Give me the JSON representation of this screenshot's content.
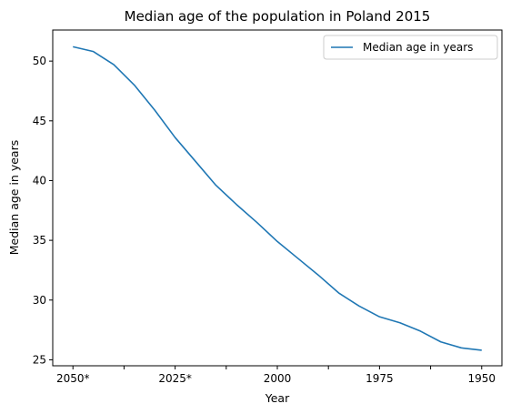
{
  "chart_data": {
    "type": "line",
    "title": "Median age of the population in Poland 2015",
    "xlabel": "Year",
    "ylabel": "Median age in years",
    "categories": [
      "2050*",
      "2045*",
      "2040*",
      "2035*",
      "2030*",
      "2025*",
      "2020*",
      "2015",
      "2010",
      "2005",
      "2000",
      "1995",
      "1990",
      "1985",
      "1980",
      "1975",
      "1970",
      "1965",
      "1960",
      "1955",
      "1950"
    ],
    "x_tick_labels": [
      {
        "index": 0,
        "label": "2050*"
      },
      {
        "index": 5,
        "label": "2025*"
      },
      {
        "index": 10,
        "label": "2000"
      },
      {
        "index": 15,
        "label": "1975"
      },
      {
        "index": 20,
        "label": "1950"
      }
    ],
    "x_minor_tick_indices": [
      2.5,
      7.5,
      12.5,
      17.5
    ],
    "y_ticks": [
      25,
      30,
      35,
      40,
      45,
      50
    ],
    "ylim": [
      24.5,
      52.6
    ],
    "grid": false,
    "legend_position": "top-right",
    "series": [
      {
        "name": "Median age in years",
        "color": "#1f77b4",
        "values": [
          51.2,
          50.8,
          49.7,
          48.0,
          45.9,
          43.6,
          41.6,
          39.6,
          38.0,
          36.5,
          34.9,
          33.5,
          32.1,
          30.6,
          29.5,
          28.6,
          28.1,
          27.4,
          26.5,
          26.0,
          25.8
        ]
      }
    ]
  }
}
